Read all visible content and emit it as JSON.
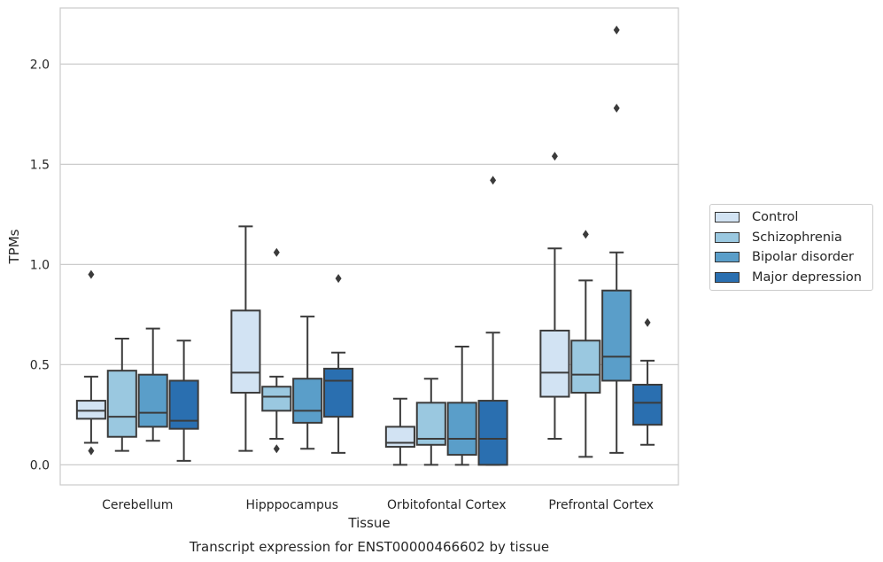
{
  "chart_data": {
    "type": "box",
    "title": "Transcript expression for ENST00000466602 by tissue",
    "xlabel": "Tissue",
    "ylabel": "TPMs",
    "ylim": [
      -0.1,
      2.28
    ],
    "yticks": [
      "0.0",
      "0.5",
      "1.0",
      "1.5",
      "2.0"
    ],
    "grid": "horizontal",
    "legend_position": "right",
    "categories": [
      "Cerebellum",
      "Hipppocampus",
      "Orbitofontal Cortex",
      "Prefrontal Cortex"
    ],
    "series": [
      {
        "name": "Control",
        "color": "#d2e3f3",
        "boxes": [
          {
            "whislo": 0.11,
            "q1": 0.23,
            "med": 0.27,
            "q3": 0.32,
            "whishi": 0.44,
            "fliers": [
              0.07,
              0.95
            ]
          },
          {
            "whislo": 0.07,
            "q1": 0.36,
            "med": 0.46,
            "q3": 0.77,
            "whishi": 1.19,
            "fliers": []
          },
          {
            "whislo": 0.0,
            "q1": 0.09,
            "med": 0.11,
            "q3": 0.19,
            "whishi": 0.33,
            "fliers": []
          },
          {
            "whislo": 0.13,
            "q1": 0.34,
            "med": 0.46,
            "q3": 0.67,
            "whishi": 1.08,
            "fliers": [
              1.54
            ]
          }
        ]
      },
      {
        "name": "Schizophrenia",
        "color": "#9ac8e0",
        "boxes": [
          {
            "whislo": 0.07,
            "q1": 0.14,
            "med": 0.24,
            "q3": 0.47,
            "whishi": 0.63,
            "fliers": []
          },
          {
            "whislo": 0.13,
            "q1": 0.27,
            "med": 0.34,
            "q3": 0.39,
            "whishi": 0.44,
            "fliers": [
              0.08,
              1.06
            ]
          },
          {
            "whislo": 0.0,
            "q1": 0.1,
            "med": 0.13,
            "q3": 0.31,
            "whishi": 0.43,
            "fliers": []
          },
          {
            "whislo": 0.04,
            "q1": 0.36,
            "med": 0.45,
            "q3": 0.62,
            "whishi": 0.92,
            "fliers": [
              1.15
            ]
          }
        ]
      },
      {
        "name": "Bipolar disorder",
        "color": "#5a9ec9",
        "boxes": [
          {
            "whislo": 0.12,
            "q1": 0.19,
            "med": 0.26,
            "q3": 0.45,
            "whishi": 0.68,
            "fliers": []
          },
          {
            "whislo": 0.08,
            "q1": 0.21,
            "med": 0.27,
            "q3": 0.43,
            "whishi": 0.74,
            "fliers": []
          },
          {
            "whislo": 0.0,
            "q1": 0.05,
            "med": 0.13,
            "q3": 0.31,
            "whishi": 0.59,
            "fliers": []
          },
          {
            "whislo": 0.06,
            "q1": 0.42,
            "med": 0.54,
            "q3": 0.87,
            "whishi": 1.06,
            "fliers": [
              1.78,
              2.17
            ]
          }
        ]
      },
      {
        "name": "Major depression",
        "color": "#2a6fb0",
        "boxes": [
          {
            "whislo": 0.02,
            "q1": 0.18,
            "med": 0.22,
            "q3": 0.42,
            "whishi": 0.62,
            "fliers": []
          },
          {
            "whislo": 0.06,
            "q1": 0.24,
            "med": 0.42,
            "q3": 0.48,
            "whishi": 0.56,
            "fliers": [
              0.93
            ]
          },
          {
            "whislo": 0.0,
            "q1": 0.0,
            "med": 0.13,
            "q3": 0.32,
            "whishi": 0.66,
            "fliers": [
              1.42
            ]
          },
          {
            "whislo": 0.1,
            "q1": 0.2,
            "med": 0.31,
            "q3": 0.4,
            "whishi": 0.52,
            "fliers": [
              0.71
            ]
          }
        ]
      }
    ]
  }
}
